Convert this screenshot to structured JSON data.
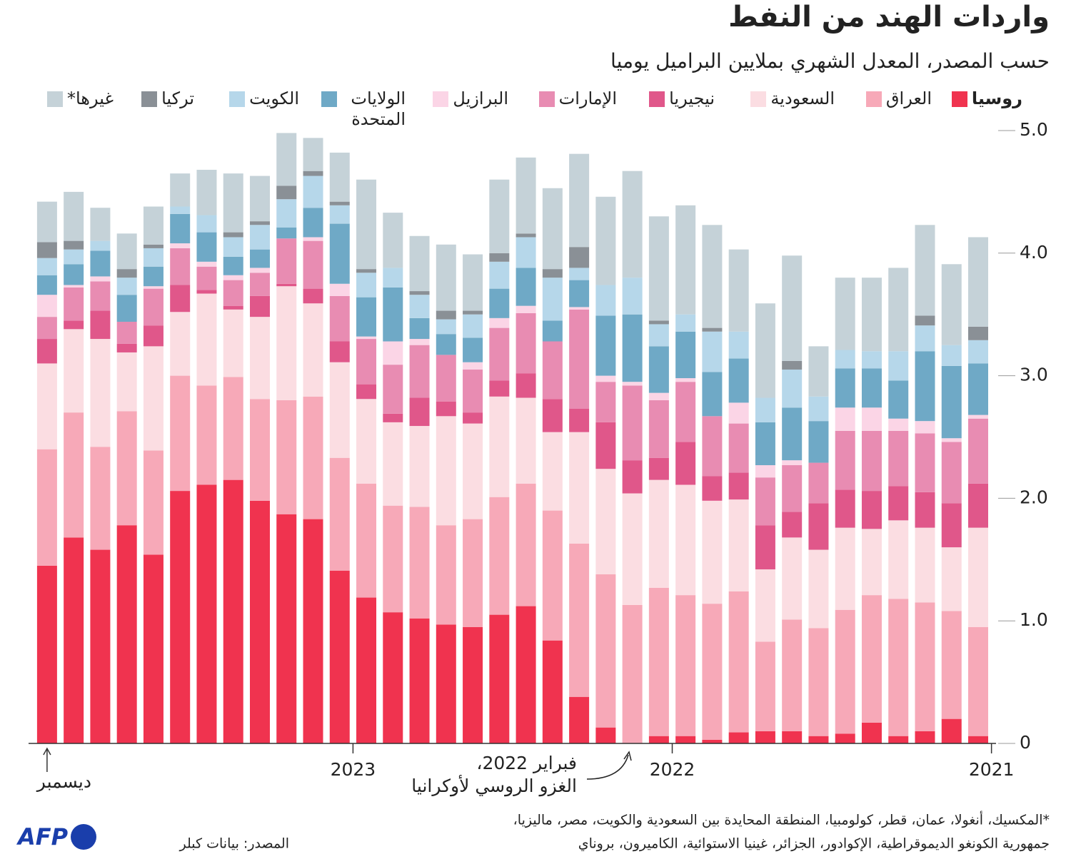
{
  "chart_data": {
    "type": "stacked_bar",
    "title": "واردات الهند من النفط",
    "subtitle": "حسب المصدر، المعدل الشهري بملايين البراميل يوميا",
    "categories": [
      "2021",
      null,
      null,
      null,
      null,
      null,
      null,
      null,
      null,
      null,
      null,
      null,
      "2022",
      null,
      null,
      null,
      null,
      null,
      null,
      null,
      null,
      null,
      null,
      null,
      "2023",
      null,
      null,
      null,
      null,
      null,
      null,
      null,
      null,
      null,
      null,
      "ديسمبر"
    ],
    "series": [
      {
        "name": "روسيا",
        "color": "#f0334f",
        "values": [
          0.06,
          0.2,
          0.1,
          0.06,
          0.17,
          0.08,
          0.06,
          0.1,
          0.1,
          0.09,
          0.03,
          0.06,
          0.06,
          0,
          0.13,
          0.38,
          0.84,
          1.12,
          1.05,
          0.95,
          0.97,
          1.02,
          1.07,
          1.19,
          1.41,
          1.83,
          1.87,
          1.98,
          2.15,
          2.11,
          2.06,
          1.54,
          1.78,
          1.58,
          1.68,
          1.45
        ]
      },
      {
        "name": "العراق",
        "color": "#f7a9b8",
        "values": [
          0.89,
          0.88,
          1.05,
          1.12,
          1.04,
          1.01,
          0.88,
          0.91,
          0.73,
          1.15,
          1.11,
          1.15,
          1.21,
          1.13,
          1.25,
          1.25,
          1.06,
          1.0,
          0.96,
          0.88,
          0.81,
          0.91,
          0.87,
          0.93,
          0.92,
          1.0,
          0.93,
          0.83,
          0.84,
          0.81,
          0.94,
          0.85,
          0.93,
          0.84,
          1.02,
          0.95
        ]
      },
      {
        "name": "السعودية",
        "color": "#fbdde2",
        "values": [
          0.81,
          0.52,
          0.61,
          0.64,
          0.54,
          0.67,
          0.64,
          0.67,
          0.59,
          0.75,
          0.84,
          0.9,
          0.88,
          0.91,
          0.86,
          0.91,
          0.64,
          0.7,
          0.82,
          0.78,
          0.89,
          0.66,
          0.68,
          0.69,
          0.78,
          0.76,
          0.93,
          0.67,
          0.55,
          0.75,
          0.52,
          0.85,
          0.48,
          0.88,
          0.68,
          0.7
        ]
      },
      {
        "name": "نيجيريا",
        "color": "#e0578a",
        "values": [
          0.36,
          0.36,
          0.29,
          0.28,
          0.31,
          0.31,
          0.38,
          0.21,
          0.36,
          0.22,
          0.2,
          0.35,
          0.18,
          0.27,
          0.38,
          0.19,
          0.27,
          0.2,
          0.13,
          0.09,
          0.12,
          0.23,
          0.07,
          0.12,
          0.17,
          0.12,
          0.02,
          0.17,
          0.03,
          0.03,
          0.22,
          0.17,
          0.07,
          0.23,
          0.07,
          0.2
        ]
      },
      {
        "name": "الإمارات",
        "color": "#e88cb2",
        "values": [
          0.53,
          0.5,
          0.48,
          0.45,
          0.49,
          0.48,
          0.33,
          0.38,
          0.39,
          0.4,
          0.49,
          0.49,
          0.47,
          0.61,
          0.33,
          0.81,
          0.47,
          0.49,
          0.43,
          0.35,
          0.38,
          0.43,
          0.4,
          0.37,
          0.37,
          0.39,
          0.37,
          0.19,
          0.21,
          0.19,
          0.3,
          0.3,
          0.18,
          0.24,
          0.27,
          0.18
        ]
      },
      {
        "name": "البرازيل",
        "color": "#fbd5e6",
        "values": [
          0.03,
          0.03,
          0.1,
          0.1,
          0.19,
          0.19,
          0,
          0.04,
          0.1,
          0.17,
          0,
          0.03,
          0.06,
          0.03,
          0.05,
          0.02,
          0,
          0.06,
          0.08,
          0.06,
          0,
          0.05,
          0.19,
          0.02,
          0.1,
          0.03,
          0,
          0.04,
          0.04,
          0.04,
          0.04,
          0.02,
          0,
          0.04,
          0.02,
          0.18
        ]
      },
      {
        "name": "الولايات المتحدة",
        "color": "#6fa9c6",
        "values": [
          0.42,
          0.59,
          0.57,
          0.31,
          0.32,
          0.32,
          0.34,
          0.43,
          0.35,
          0.36,
          0.36,
          0.38,
          0.38,
          0.55,
          0.49,
          0.22,
          0.17,
          0.31,
          0.24,
          0.2,
          0.17,
          0.17,
          0.44,
          0.32,
          0.49,
          0.24,
          0.09,
          0.15,
          0.15,
          0.24,
          0.24,
          0.16,
          0.22,
          0.21,
          0.17,
          0.16
        ]
      },
      {
        "name": "الكويت",
        "color": "#b6d7ea",
        "values": [
          0.19,
          0.17,
          0.21,
          0.24,
          0.14,
          0.15,
          0.2,
          0.31,
          0.2,
          0.22,
          0.33,
          0.14,
          0.18,
          0.3,
          0.25,
          0.1,
          0.35,
          0.25,
          0.22,
          0.19,
          0.12,
          0.19,
          0.16,
          0.2,
          0.15,
          0.26,
          0.23,
          0.2,
          0.16,
          0.14,
          0.06,
          0.15,
          0.14,
          0.08,
          0.12,
          0.14
        ]
      },
      {
        "name": "تركيا",
        "color": "#8a9096",
        "values": [
          0.11,
          0,
          0.08,
          0,
          0,
          0,
          0,
          0.07,
          0,
          0,
          0.03,
          0,
          0.03,
          0,
          0,
          0.17,
          0.07,
          0.03,
          0.07,
          0.03,
          0.07,
          0.03,
          0,
          0.03,
          0.03,
          0.04,
          0.11,
          0.03,
          0.04,
          0,
          0,
          0.03,
          0.07,
          0,
          0.07,
          0.13
        ]
      },
      {
        "name": "غيرها*",
        "color": "#c5d2d8",
        "values": [
          0.73,
          0.66,
          0.74,
          0.68,
          0.6,
          0.59,
          0.41,
          0.86,
          0.77,
          0.67,
          0.84,
          0.89,
          0.85,
          0.87,
          0.72,
          0.76,
          0.66,
          0.62,
          0.6,
          0.46,
          0.54,
          0.45,
          0.45,
          0.73,
          0.4,
          0.27,
          0.43,
          0.37,
          0.48,
          0.37,
          0.27,
          0.31,
          0.29,
          0.27,
          0.4,
          0.33
        ]
      }
    ],
    "ylim": [
      0,
      5
    ],
    "yticks": [
      0,
      {
        "value": 1,
        "label": "1.0"
      },
      {
        "value": 2,
        "label": "2.0"
      },
      {
        "value": 3,
        "label": "3.0"
      },
      {
        "value": 4,
        "label": "4.0"
      },
      {
        "value": 5,
        "label": "5.0"
      }
    ],
    "annotation": [
      "فبراير 2022،",
      "الغزو الروسي لأوكرانيا"
    ],
    "footnote": [
      "*المكسيك، أنغولا، عمان، قطر، كولومبيا، المنطقة المحايدة بين السعودية والكويت، مصر، ماليزيا،",
      "جمهورية الكونغو الديموقراطية، الإكوادور، الجزائر، غينيا الاستوائية، الكاميرون، بروناي"
    ],
    "source": "المصدر: بيانات كبلر",
    "logo": "AFP"
  }
}
